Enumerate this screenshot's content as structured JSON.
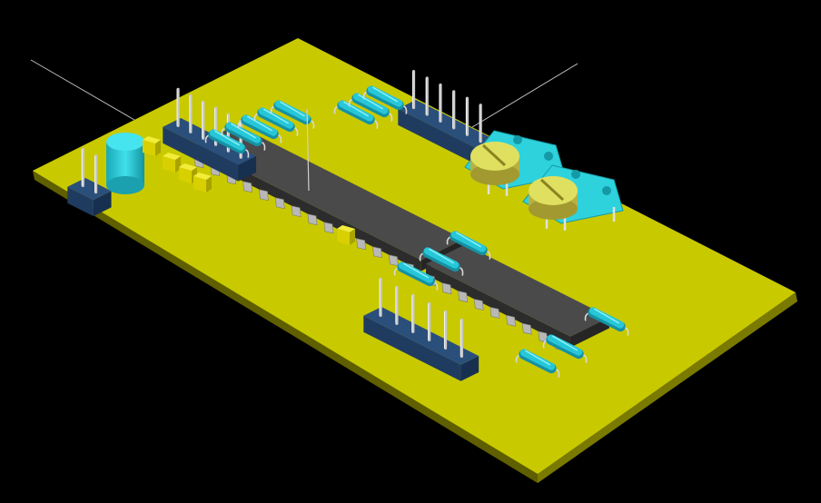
{
  "scene": {
    "title": "",
    "description_visible_text": [],
    "colors": {
      "background": "#000000",
      "board_top": "#c9c900",
      "board_edge": "#6b6b00",
      "board_under": "#2f5d1f",
      "ic_body": "#3c3c3c",
      "ic_top": "#4a4a4a",
      "ic_pin": "#b8b8b8",
      "header_body": "#2a4f7a",
      "pin_metal": "#c8c8c8",
      "resistor": "#27c7d8",
      "resistor_dark": "#1592a3",
      "capacitor": "#2fd0dc",
      "cap_small": "#e8e000",
      "trimpot_base": "#2ed2dc",
      "trimpot_knob": "#e0e060",
      "wire": "#d9d9d9"
    }
  }
}
